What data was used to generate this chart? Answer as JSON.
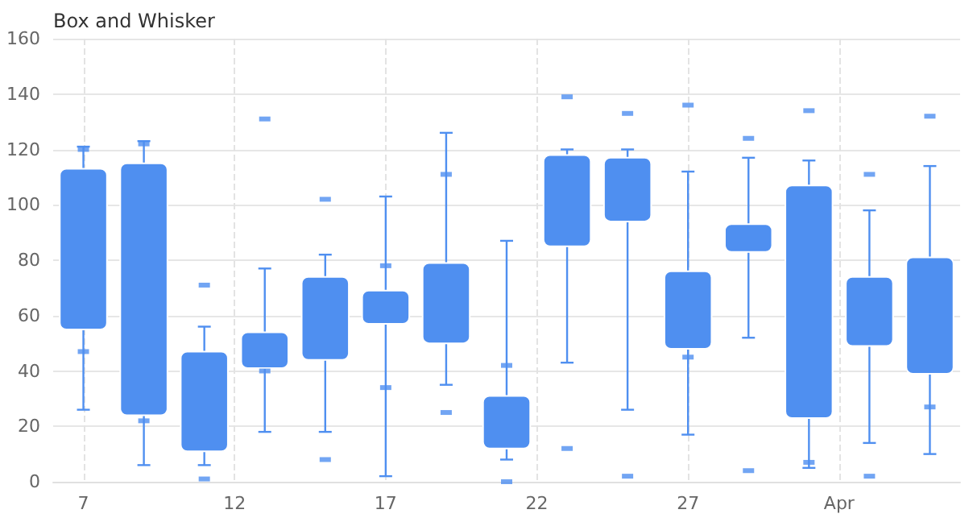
{
  "chart_data": {
    "type": "box",
    "title": "Box and Whisker",
    "color": "#4f8ff0",
    "x": [
      "--03-07",
      "--03-09",
      "--03-11",
      "--03-13",
      "--03-15",
      "--03-17",
      "--03-19",
      "--03-21",
      "--03-23",
      "--03-25",
      "--03-27",
      "--03-29",
      "--03-31",
      "--04-02",
      "--04-04"
    ],
    "boxes": [
      {
        "low": 26,
        "q1": 55,
        "q3": 113,
        "high": 121,
        "outliers": [
          120,
          47
        ]
      },
      {
        "low": 6,
        "q1": 24,
        "q3": 115,
        "high": 123,
        "outliers": [
          122,
          22
        ]
      },
      {
        "low": 6,
        "q1": 11,
        "q3": 47,
        "high": 56,
        "outliers": [
          71,
          1
        ]
      },
      {
        "low": 18,
        "q1": 41,
        "q3": 54,
        "high": 77,
        "outliers": [
          131,
          40
        ]
      },
      {
        "low": 18,
        "q1": 44,
        "q3": 74,
        "high": 82,
        "outliers": [
          102,
          8
        ]
      },
      {
        "low": 2,
        "q1": 57,
        "q3": 69,
        "high": 103,
        "outliers": [
          78,
          34
        ]
      },
      {
        "low": 35,
        "q1": 50,
        "q3": 79,
        "high": 126,
        "outliers": [
          111,
          25
        ]
      },
      {
        "low": 8,
        "q1": 12,
        "q3": 31,
        "high": 87,
        "outliers": [
          42,
          0
        ]
      },
      {
        "low": 43,
        "q1": 85,
        "q3": 118,
        "high": 120,
        "outliers": [
          139,
          12
        ]
      },
      {
        "low": 26,
        "q1": 94,
        "q3": 117,
        "high": 120,
        "outliers": [
          133,
          2
        ]
      },
      {
        "low": 17,
        "q1": 48,
        "q3": 76,
        "high": 112,
        "outliers": [
          136,
          45
        ]
      },
      {
        "low": 52,
        "q1": 83,
        "q3": 93,
        "high": 117,
        "outliers": [
          124,
          4
        ]
      },
      {
        "low": 5,
        "q1": 23,
        "q3": 107,
        "high": 116,
        "outliers": [
          134,
          7
        ]
      },
      {
        "low": 14,
        "q1": 49,
        "q3": 74,
        "high": 98,
        "outliers": [
          111,
          2
        ]
      },
      {
        "low": 10,
        "q1": 39,
        "q3": 81,
        "high": 114,
        "outliers": [
          132,
          27
        ]
      }
    ],
    "xlim": [
      "--03-06",
      "--04-05"
    ],
    "xticks": [
      {
        "value": "--03-07",
        "label": "7"
      },
      {
        "value": "--03-12",
        "label": "12"
      },
      {
        "value": "--03-17",
        "label": "17"
      },
      {
        "value": "--03-22",
        "label": "22"
      },
      {
        "value": "--03-27",
        "label": "27"
      },
      {
        "value": "--04-01",
        "label": "Apr"
      }
    ],
    "ylim": [
      0,
      160
    ],
    "yticks": [
      0,
      20,
      40,
      60,
      80,
      100,
      120,
      140,
      160
    ],
    "grid": true
  }
}
